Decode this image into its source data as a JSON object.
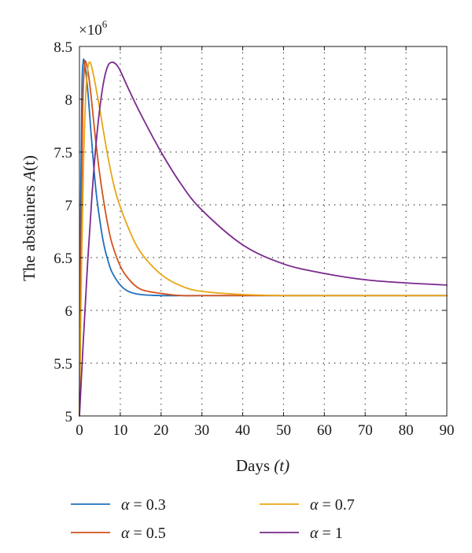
{
  "chart_data": {
    "type": "line",
    "ylabel_prefix": "The abstainers ",
    "ylabel_var": "A",
    "ylabel_arg": "(t)",
    "xlabel_prefix": "Days ",
    "xlabel_var": "(t)",
    "y_multiplier_base": "×10",
    "y_multiplier_exp": "6",
    "xlim": [
      0,
      90
    ],
    "ylim": [
      5,
      8.5
    ],
    "x_ticks": [
      0,
      10,
      20,
      30,
      40,
      50,
      60,
      70,
      80,
      90
    ],
    "x_tick_labels": [
      "0",
      "10",
      "20",
      "30",
      "40",
      "50",
      "60",
      "70",
      "80",
      "90"
    ],
    "y_ticks": [
      5,
      5.5,
      6,
      6.5,
      7,
      7.5,
      8,
      8.5
    ],
    "y_tick_labels": [
      "5",
      "5.5",
      "6",
      "6.5",
      "7",
      "7.5",
      "8",
      "8.5"
    ],
    "grid": true,
    "legend_position": "bottom",
    "series": [
      {
        "name": "α = 0.3",
        "legend_symbol": "α",
        "legend_value": "= 0.3",
        "color": "#1f6fbf",
        "x": [
          0,
          0.3,
          0.6,
          0.9,
          1.2,
          2,
          3,
          4,
          5,
          6,
          7,
          8,
          10,
          12,
          15,
          20,
          25,
          30,
          40,
          60,
          90
        ],
        "y": [
          5.0,
          7.0,
          8.1,
          8.35,
          8.35,
          8.1,
          7.6,
          7.15,
          6.85,
          6.62,
          6.47,
          6.36,
          6.24,
          6.18,
          6.15,
          6.14,
          6.14,
          6.14,
          6.14,
          6.14,
          6.14
        ]
      },
      {
        "name": "α = 0.5",
        "legend_symbol": "α",
        "legend_value": "= 0.5",
        "color": "#d2531c",
        "x": [
          0,
          0.4,
          0.8,
          1.2,
          1.6,
          2.5,
          4,
          5,
          6,
          7,
          8,
          10,
          12,
          15,
          20,
          25,
          30,
          40,
          60,
          90
        ],
        "y": [
          5.0,
          6.7,
          7.9,
          8.3,
          8.35,
          8.15,
          7.6,
          7.28,
          7.02,
          6.8,
          6.63,
          6.42,
          6.3,
          6.2,
          6.16,
          6.14,
          6.14,
          6.14,
          6.14,
          6.14
        ]
      },
      {
        "name": "α = 0.7",
        "legend_symbol": "α",
        "legend_value": "= 0.7",
        "color": "#e8a615",
        "x": [
          0,
          0.5,
          1,
          1.5,
          2,
          2.6,
          3.5,
          5,
          7,
          9,
          12,
          15,
          20,
          25,
          30,
          40,
          50,
          60,
          90
        ],
        "y": [
          5.0,
          6.4,
          7.4,
          8.0,
          8.28,
          8.35,
          8.22,
          7.9,
          7.45,
          7.1,
          6.78,
          6.55,
          6.34,
          6.23,
          6.18,
          6.15,
          6.14,
          6.14,
          6.14
        ]
      },
      {
        "name": "α = 1",
        "legend_symbol": "α",
        "legend_value": "= 1",
        "color": "#7a2a8c",
        "x": [
          0,
          1,
          2,
          3,
          4,
          5,
          6,
          7,
          8,
          9,
          10,
          12,
          15,
          20,
          25,
          30,
          40,
          50,
          60,
          70,
          80,
          90
        ],
        "y": [
          5.0,
          5.75,
          6.45,
          7.05,
          7.55,
          7.92,
          8.18,
          8.32,
          8.35,
          8.33,
          8.27,
          8.1,
          7.86,
          7.5,
          7.19,
          6.95,
          6.62,
          6.44,
          6.35,
          6.29,
          6.26,
          6.24
        ]
      }
    ]
  }
}
